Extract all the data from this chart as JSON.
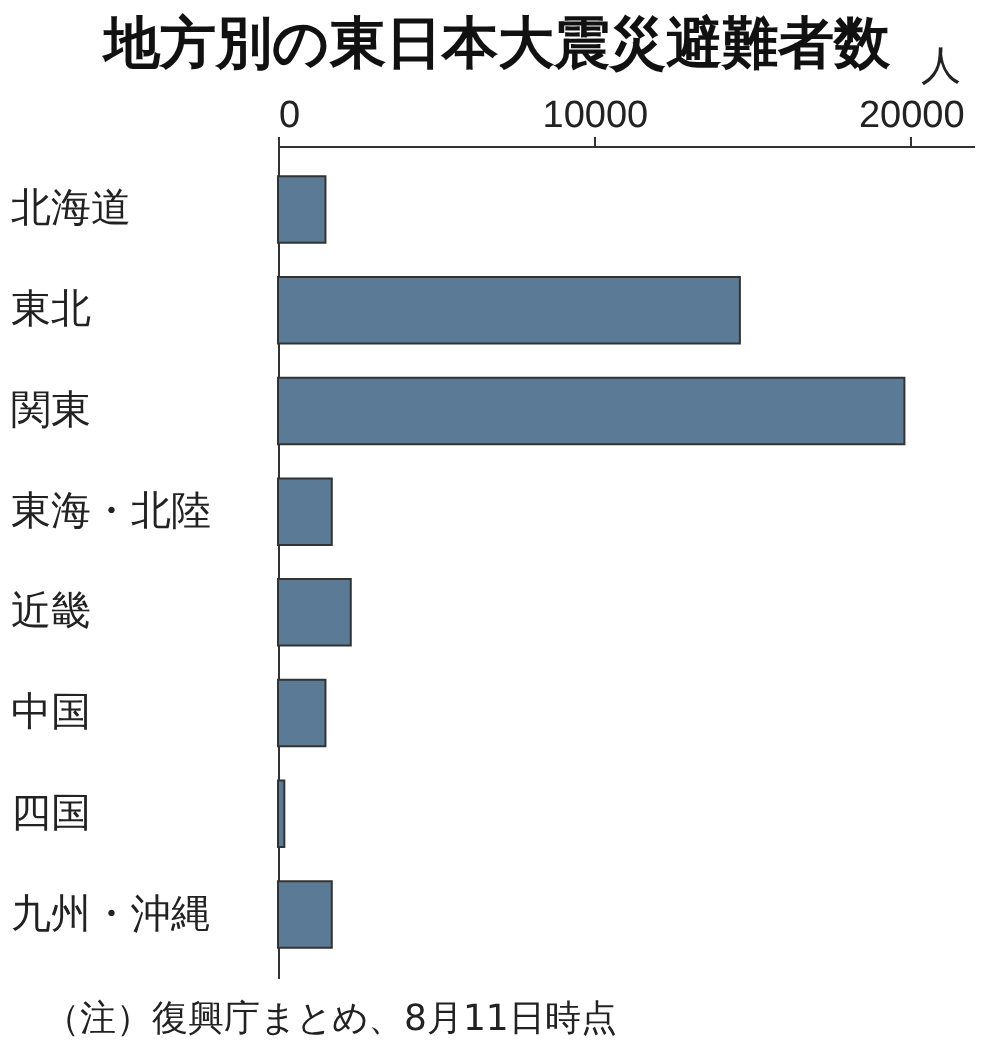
{
  "chart_data": {
    "type": "bar",
    "orientation": "horizontal",
    "title": "地方別の東日本大震災避難者数",
    "xlabel": "人",
    "categories": [
      "北海道",
      "東北",
      "関東",
      "東海・北陸",
      "近畿",
      "中国",
      "四国",
      "九州・沖縄"
    ],
    "values": [
      1500,
      14600,
      19800,
      1700,
      2300,
      1500,
      200,
      1700
    ],
    "color": "#5b7a96",
    "xlim": [
      0,
      22000
    ],
    "xticks": [
      0,
      10000,
      20000
    ],
    "grid": false,
    "annotations": [
      "（注）復興庁まとめ、8月11日時点"
    ]
  }
}
